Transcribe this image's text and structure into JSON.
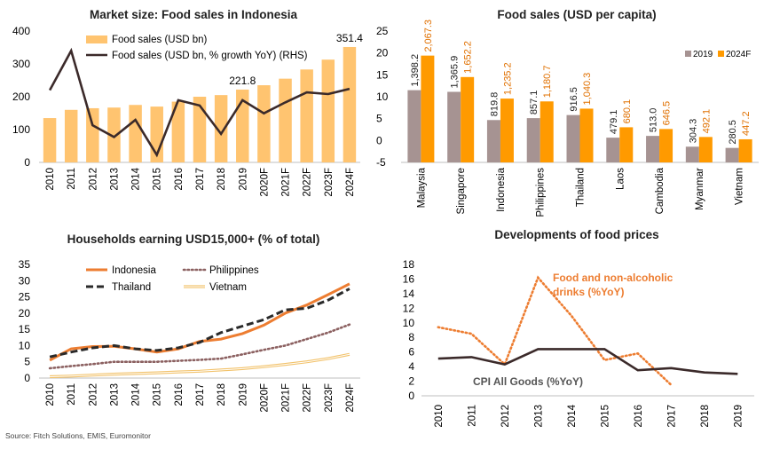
{
  "source": "Source: Fitch Solutions, EMIS, Euromonitor",
  "chart_data": [
    {
      "type": "bar",
      "title": "Market size: Food sales in Indonesia",
      "categories": [
        "2010",
        "2011",
        "2012",
        "2013",
        "2014",
        "2015",
        "2016",
        "2017",
        "2018",
        "2019",
        "2020F",
        "2021F",
        "2022F",
        "2023F",
        "2024F"
      ],
      "series": [
        {
          "name": "Food sales (USD bn)",
          "type": "bar",
          "axis": "left",
          "values": [
            135,
            160,
            165,
            167,
            175,
            170,
            185,
            200,
            205,
            221.8,
            235,
            255,
            283,
            313,
            351.4
          ]
        },
        {
          "name": "Food sales (USD bn, % growth YoY) (RHS)",
          "type": "line",
          "axis": "right",
          "values": [
            11.5,
            20.5,
            3.5,
            0.8,
            4.7,
            -3.3,
            9.2,
            8.0,
            1.5,
            9.2,
            6.2,
            8.7,
            11.0,
            10.6,
            11.8
          ]
        }
      ],
      "data_labels": [
        {
          "index": 9,
          "text": "221.8"
        },
        {
          "index": 14,
          "text": "351.4"
        }
      ],
      "ylim": [
        0,
        400
      ],
      "y_ticks": [
        0,
        100,
        200,
        300,
        400
      ],
      "y2lim": [
        -5,
        25
      ],
      "y2_ticks": [
        -5,
        0,
        5,
        10,
        15,
        20,
        25
      ],
      "legend": "top-left",
      "colors": {
        "bar": "#FFC470",
        "line": "#3B2A2A"
      }
    },
    {
      "type": "bar",
      "title": "Food sales (USD per capita)",
      "categories": [
        "Malaysia",
        "Singapore",
        "Indonesia",
        "Philippines",
        "Thailand",
        "Laos",
        "Cambodia",
        "Myanmar",
        "Vietnam"
      ],
      "series": [
        {
          "name": "2019",
          "values": [
            1398.2,
            1365.9,
            819.8,
            857.1,
            916.5,
            479.1,
            513.0,
            304.3,
            280.5
          ],
          "labels": [
            "1,398.2",
            "1,365.9",
            "819.8",
            "857.1",
            "916.5",
            "479.1",
            "513.0",
            "304.3",
            "280.5"
          ]
        },
        {
          "name": "2024F",
          "values": [
            2067.3,
            1652.2,
            1235.2,
            1180.7,
            1040.3,
            680.1,
            646.5,
            492.1,
            447.2
          ],
          "labels": [
            "2,067.3",
            "1,652.2",
            "1,235.2",
            "1,180.7",
            "1,040.3",
            "680.1",
            "646.5",
            "492.1",
            "447.2"
          ]
        }
      ],
      "ylim": [
        0,
        2800
      ],
      "legend": "top-right",
      "colors": {
        "2019": "#A69392",
        "2024F": "#FF9A00"
      }
    },
    {
      "type": "line",
      "title": "Households earning USD15,000+ (% of total)",
      "x": [
        "2010",
        "2011",
        "2012",
        "2013",
        "2014",
        "2015",
        "2016",
        "2017",
        "2018",
        "2019",
        "2020F",
        "2021F",
        "2022F",
        "2023F",
        "2024F"
      ],
      "series": [
        {
          "name": "Indonesia",
          "style": "solid",
          "color": "#ED7D31",
          "values": [
            5.5,
            9.0,
            9.7,
            9.8,
            9.0,
            8.0,
            9.0,
            11.3,
            12.0,
            13.7,
            16.3,
            20.0,
            22.5,
            25.7,
            29.0
          ]
        },
        {
          "name": "Philippines",
          "style": "dotted",
          "color": "#8B6060",
          "values": [
            3.0,
            3.7,
            4.3,
            5.0,
            5.0,
            5.0,
            5.3,
            5.6,
            6.0,
            7.3,
            8.7,
            10.0,
            12.0,
            14.0,
            16.5
          ]
        },
        {
          "name": "Thailand",
          "style": "dashed",
          "color": "#2A2A2A",
          "values": [
            6.5,
            8.0,
            9.3,
            10.0,
            9.0,
            8.5,
            9.3,
            11.0,
            14.0,
            16.0,
            18.0,
            21.0,
            21.5,
            24.0,
            27.5
          ]
        },
        {
          "name": "Vietnam",
          "style": "double",
          "color": "#F2C26B",
          "values": [
            0.4,
            0.6,
            0.9,
            1.2,
            1.4,
            1.6,
            1.9,
            2.1,
            2.5,
            2.9,
            3.5,
            4.2,
            5.0,
            6.0,
            7.3
          ]
        }
      ],
      "ylim": [
        0,
        35
      ],
      "y_ticks": [
        0,
        5,
        10,
        15,
        20,
        25,
        30,
        35
      ],
      "legend": "top"
    },
    {
      "type": "line",
      "title": "Developments of food prices",
      "x": [
        "2010",
        "2011",
        "2012",
        "2013",
        "2014",
        "2015",
        "2016",
        "2017",
        "2018",
        "2019"
      ],
      "series": [
        {
          "name": "Food and non-alcoholic drinks (%YoY)",
          "style": "dotted",
          "color": "#ED7D31",
          "values": [
            9.4,
            8.5,
            4.3,
            16.2,
            11.0,
            4.9,
            5.8,
            1.5,
            null,
            null
          ],
          "label_lines": [
            "Food and non-alcoholic",
            "drinks (%YoY)"
          ]
        },
        {
          "name": "CPI All Goods (%YoY)",
          "style": "solid",
          "color": "#3B2A2A",
          "values": [
            5.1,
            5.3,
            4.3,
            6.4,
            6.4,
            6.4,
            3.5,
            3.8,
            3.2,
            3.0
          ]
        }
      ],
      "ylim": [
        0,
        18
      ],
      "y_ticks": [
        0,
        2,
        4,
        6,
        8,
        10,
        12,
        14,
        16,
        18
      ]
    }
  ]
}
